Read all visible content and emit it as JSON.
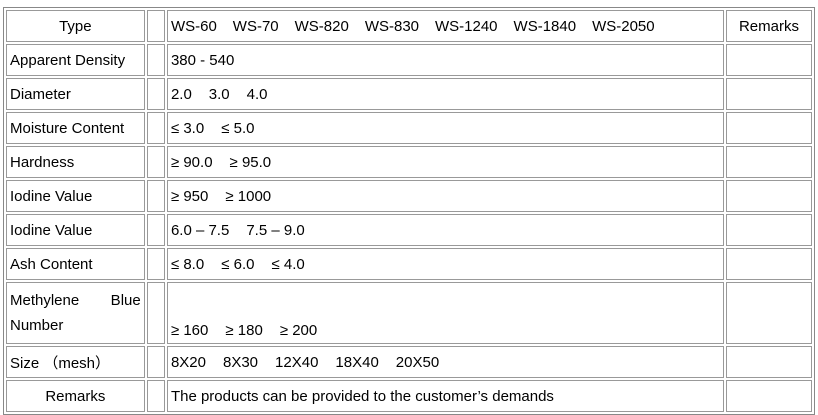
{
  "header": {
    "type": "Type",
    "grades": [
      "WS-60",
      "WS-70",
      "WS-820",
      "WS-830",
      "WS-1240",
      "WS-1840",
      "WS-2050"
    ],
    "remarks": "Remarks"
  },
  "rows": [
    {
      "label": "Apparent Density",
      "values": [
        "380 - 540"
      ]
    },
    {
      "label": "Diameter",
      "values": [
        "2.0",
        "3.0",
        "4.0"
      ]
    },
    {
      "label": "Moisture Content",
      "values": [
        "≤ 3.0",
        "≤ 5.0"
      ]
    },
    {
      "label": "Hardness",
      "values": [
        "≥ 90.0",
        "≥ 95.0"
      ]
    },
    {
      "label": "Iodine Value",
      "values": [
        "≥ 950",
        "≥ 1000"
      ]
    },
    {
      "label": "Iodine Value",
      "values": [
        "6.0 – 7.5",
        "7.5 – 9.0"
      ]
    },
    {
      "label": "Ash Content",
      "values": [
        "≤ 8.0",
        "≤ 6.0",
        "≤ 4.0"
      ]
    },
    {
      "label": "Methylene Blue Number",
      "values": [
        "≥ 160",
        "≥ 180",
        "≥ 200"
      ]
    },
    {
      "label": "Size （mesh）",
      "values": [
        "8X20",
        "8X30",
        "12X40",
        "18X40",
        "20X50"
      ]
    },
    {
      "label": "Remarks",
      "values": [
        "The products can be provided to the customer’s demands"
      ]
    }
  ]
}
